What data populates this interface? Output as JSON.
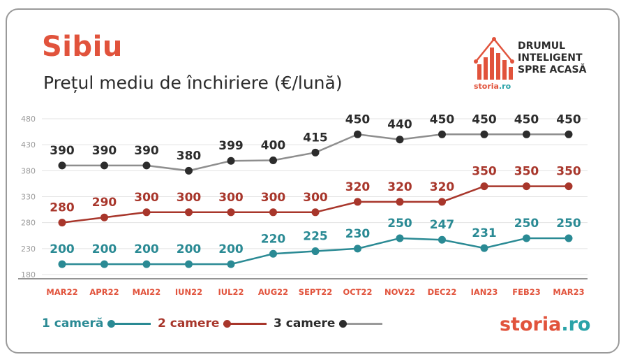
{
  "header": {
    "title": "Sibiu",
    "subtitle": "Prețul mediu de închiriere (€/lună)"
  },
  "brand": {
    "tagline": [
      "DRUMUL",
      "INTELIGENT",
      "SPRE ACASĂ"
    ],
    "logo_text": "storia",
    "logo_suffix": ".ro"
  },
  "colors": {
    "accent": "#e1533c",
    "series_1_camera": "#2a8a94",
    "series_2_camere": "#a8362b",
    "series_3_camere": "#8e8e8e",
    "label_3_camere": "#2c2c2c",
    "x_labels": "#e1533c",
    "y_ticks": "#9a9a9a"
  },
  "legend": {
    "items": [
      {
        "label": "1 cameră",
        "color": "#2a8a94"
      },
      {
        "label": "2 camere",
        "color": "#a8362b"
      },
      {
        "label": "3 camere",
        "color": "#2c2c2c"
      }
    ]
  },
  "chart_data": {
    "type": "line",
    "title": "Sibiu",
    "subtitle": "Prețul mediu de închiriere (€/lună)",
    "categories": [
      "MAR22",
      "APR22",
      "MAI22",
      "IUN22",
      "IUL22",
      "AUG22",
      "SEPT22",
      "OCT22",
      "NOV22",
      "DEC22",
      "IAN23",
      "FEB23",
      "MAR23"
    ],
    "series": [
      {
        "name": "1 cameră",
        "values": [
          200,
          200,
          200,
          200,
          200,
          220,
          225,
          230,
          250,
          247,
          231,
          250,
          250
        ]
      },
      {
        "name": "2 camere",
        "values": [
          280,
          290,
          300,
          300,
          300,
          300,
          300,
          320,
          320,
          320,
          350,
          350,
          350
        ]
      },
      {
        "name": "3 camere",
        "values": [
          390,
          390,
          390,
          380,
          399,
          400,
          415,
          450,
          440,
          450,
          450,
          450,
          450
        ]
      }
    ],
    "yticks": [
      180,
      230,
      280,
      330,
      380,
      430,
      480
    ],
    "ylim": [
      180,
      480
    ],
    "grid": true,
    "legend_position": "bottom-left"
  }
}
